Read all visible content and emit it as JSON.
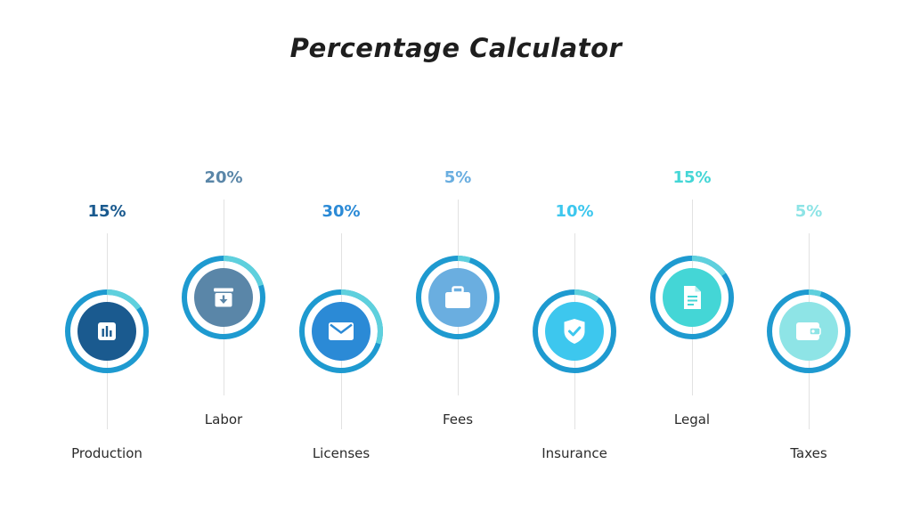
{
  "title": "Percentage Calculator",
  "items": [
    {
      "label": "Production",
      "percent_text": "15%",
      "percent": 15,
      "color": "#1a5a8f",
      "ring_color": "#1e9ad0",
      "accent_color": "#5ed0dd",
      "icon": "bar-chart-icon"
    },
    {
      "label": "Labor",
      "percent_text": "20%",
      "percent": 20,
      "color": "#5a86a8",
      "ring_color": "#1e9ad0",
      "accent_color": "#5ed0dd",
      "icon": "archive-box-icon"
    },
    {
      "label": "Licenses",
      "percent_text": "30%",
      "percent": 30,
      "color": "#2b8ad6",
      "ring_color": "#1e9ad0",
      "accent_color": "#5ed0dd",
      "icon": "envelope-icon"
    },
    {
      "label": "Fees",
      "percent_text": "5%",
      "percent": 5,
      "color": "#6aaee0",
      "ring_color": "#1e9ad0",
      "accent_color": "#5ed0dd",
      "icon": "briefcase-icon"
    },
    {
      "label": "Insurance",
      "percent_text": "10%",
      "percent": 10,
      "color": "#3dc7ee",
      "ring_color": "#1e9ad0",
      "accent_color": "#5ed0dd",
      "icon": "shield-check-icon"
    },
    {
      "label": "Legal",
      "percent_text": "15%",
      "percent": 15,
      "color": "#44d6d6",
      "ring_color": "#1e9ad0",
      "accent_color": "#5ed0dd",
      "icon": "document-icon"
    },
    {
      "label": "Taxes",
      "percent_text": "5%",
      "percent": 5,
      "color": "#8ee4e6",
      "ring_color": "#1e9ad0",
      "accent_color": "#5ed0dd",
      "icon": "wallet-icon"
    }
  ]
}
